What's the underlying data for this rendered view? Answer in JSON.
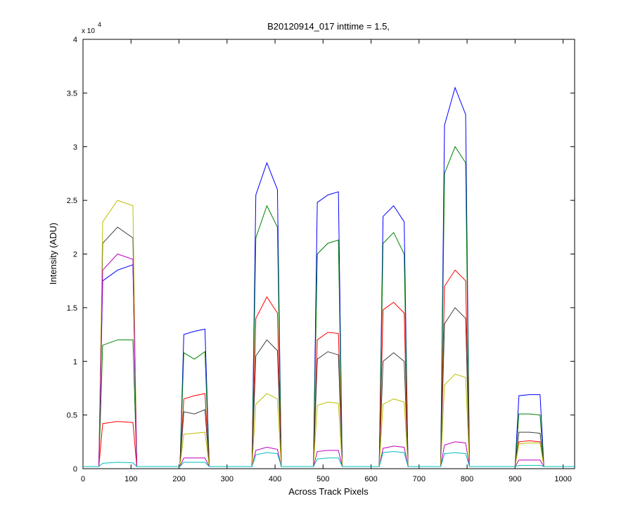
{
  "chart_data": {
    "type": "line",
    "title": "B20120914_017 inttime = 1.5,",
    "x_label": "Across Track Pixels",
    "y_label": "Intensity (ADU)",
    "y_multiplier": "x 10",
    "y_multiplier_exponent": "4",
    "xlim": [
      0,
      1024
    ],
    "ylim": [
      0,
      40000
    ],
    "xticks": [
      0,
      100,
      200,
      300,
      400,
      500,
      600,
      700,
      800,
      900,
      1000
    ],
    "yticks": [
      0,
      {
        "value": 5000,
        "label": "0.5"
      },
      {
        "value": 10000,
        "label": "1"
      },
      {
        "value": 15000,
        "label": "1.5"
      },
      {
        "value": 20000,
        "label": "2"
      },
      {
        "value": 25000,
        "label": "2.5"
      },
      {
        "value": 30000,
        "label": "3"
      },
      {
        "value": 35000,
        "label": "3.5"
      },
      {
        "value": 40000,
        "label": "4"
      }
    ],
    "x": [
      0,
      33,
      41,
      72,
      104,
      112,
      202,
      210,
      232,
      254,
      263,
      352,
      360,
      383,
      405,
      413,
      480,
      488,
      510,
      532,
      540,
      617,
      625,
      647,
      669,
      677,
      745,
      753,
      775,
      797,
      805,
      900,
      908,
      930,
      952,
      960,
      1024
    ],
    "series": [
      {
        "color": "#0000ff",
        "values": [
          200,
          200,
          17500,
          18500,
          19000,
          200,
          200,
          12500,
          12800,
          13000,
          200,
          200,
          25500,
          28500,
          26000,
          200,
          200,
          24800,
          25500,
          25800,
          200,
          200,
          23500,
          24500,
          23000,
          200,
          200,
          32000,
          35500,
          33000,
          200,
          200,
          6800,
          6900,
          6900,
          200,
          200
        ]
      },
      {
        "color": "#008000",
        "values": [
          200,
          200,
          11500,
          12000,
          12000,
          200,
          200,
          10800,
          10200,
          10900,
          200,
          200,
          21500,
          24500,
          22500,
          200,
          200,
          20000,
          21000,
          21300,
          200,
          200,
          21000,
          22000,
          20000,
          200,
          200,
          27500,
          30000,
          28500,
          200,
          200,
          5100,
          5100,
          5000,
          200,
          200
        ]
      },
      {
        "color": "#ff0000",
        "values": [
          200,
          200,
          4200,
          4400,
          4300,
          200,
          200,
          6500,
          6800,
          7000,
          200,
          200,
          14000,
          16000,
          14500,
          200,
          200,
          12000,
          12700,
          12600,
          200,
          200,
          14800,
          15500,
          14500,
          200,
          200,
          17000,
          18500,
          17500,
          200,
          200,
          2500,
          2600,
          2500,
          200,
          200
        ]
      },
      {
        "color": "#404040",
        "values": [
          200,
          200,
          21000,
          22500,
          21500,
          200,
          200,
          5300,
          5100,
          5500,
          200,
          200,
          10500,
          12000,
          11000,
          200,
          200,
          10200,
          10900,
          10600,
          200,
          200,
          10000,
          10800,
          10000,
          200,
          200,
          13500,
          15000,
          14000,
          200,
          200,
          3400,
          3400,
          3300,
          200,
          200
        ]
      },
      {
        "color": "#bfbf00",
        "values": [
          200,
          200,
          23000,
          25000,
          24500,
          200,
          200,
          3200,
          3300,
          3400,
          200,
          200,
          6000,
          7000,
          6500,
          200,
          200,
          5900,
          6200,
          6100,
          200,
          200,
          6000,
          6500,
          6200,
          200,
          200,
          7800,
          8800,
          8500,
          200,
          200,
          2300,
          2400,
          2400,
          200,
          200
        ]
      },
      {
        "color": "#bf00bf",
        "values": [
          200,
          200,
          18500,
          20000,
          19500,
          200,
          200,
          1000,
          1000,
          1000,
          200,
          200,
          1700,
          2000,
          1800,
          200,
          200,
          1600,
          1700,
          1700,
          200,
          200,
          1900,
          2100,
          2000,
          200,
          200,
          2200,
          2500,
          2400,
          200,
          200,
          800,
          800,
          800,
          200,
          200
        ]
      },
      {
        "color": "#00bfbf",
        "values": [
          200,
          200,
          500,
          600,
          550,
          200,
          200,
          600,
          600,
          600,
          200,
          200,
          1300,
          1500,
          1400,
          200,
          200,
          900,
          1000,
          1000,
          200,
          200,
          1500,
          1600,
          1500,
          200,
          200,
          1400,
          1500,
          1400,
          200,
          200,
          300,
          300,
          300,
          200,
          200
        ]
      }
    ]
  }
}
